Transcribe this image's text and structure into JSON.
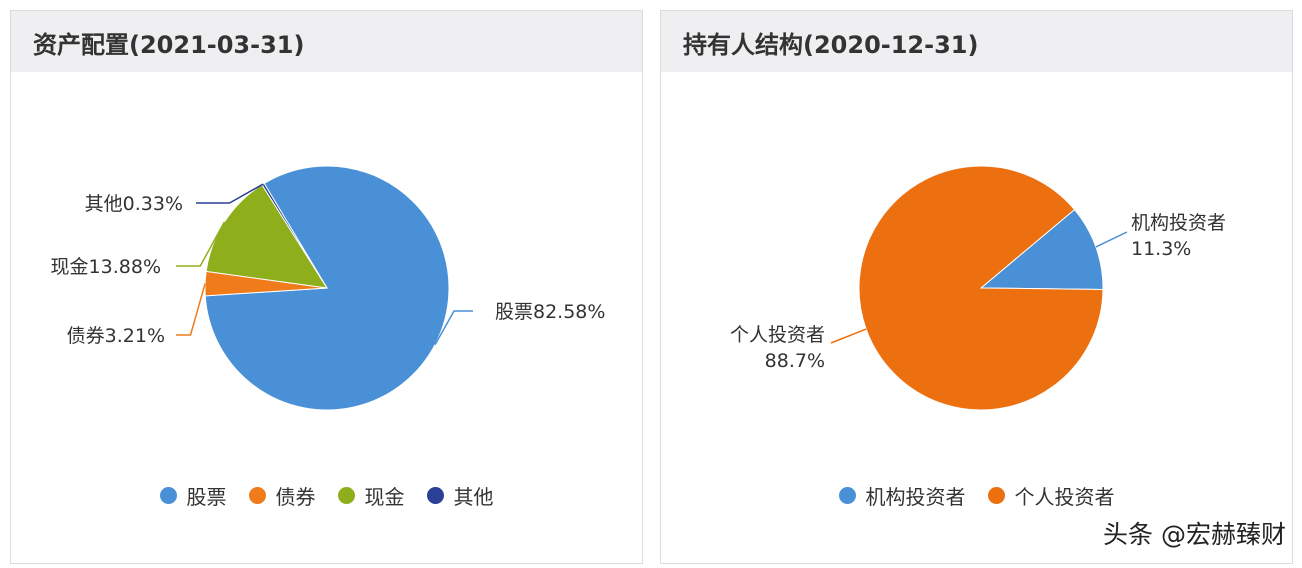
{
  "watermark": "头条 @宏赫臻财",
  "chart_data": [
    {
      "type": "pie",
      "title": "资产配置(2021-03-31)",
      "slices": [
        {
          "name": "股票",
          "value": 82.58,
          "label": "股票82.58%",
          "color": "#4a90d6"
        },
        {
          "name": "债券",
          "value": 3.21,
          "label": "债券3.21%",
          "color": "#f07b1b"
        },
        {
          "name": "现金",
          "value": 13.88,
          "label": "现金13.88%",
          "color": "#8fae1b"
        },
        {
          "name": "其他",
          "value": 0.33,
          "label": "其他0.33%",
          "color": "#2b3f94"
        }
      ],
      "legend": [
        "股票",
        "债券",
        "现金",
        "其他"
      ],
      "legend_position": "bottom"
    },
    {
      "type": "pie",
      "title": "持有人结构(2020-12-31)",
      "slices": [
        {
          "name": "机构投资者",
          "value": 11.3,
          "label_name": "机构投资者",
          "label_value": "11.3%",
          "color": "#4a90d6"
        },
        {
          "name": "个人投资者",
          "value": 88.7,
          "label_name": "个人投资者",
          "label_value": "88.7%",
          "color": "#ec6f10"
        }
      ],
      "legend": [
        "机构投资者",
        "个人投资者"
      ],
      "legend_position": "bottom"
    }
  ]
}
